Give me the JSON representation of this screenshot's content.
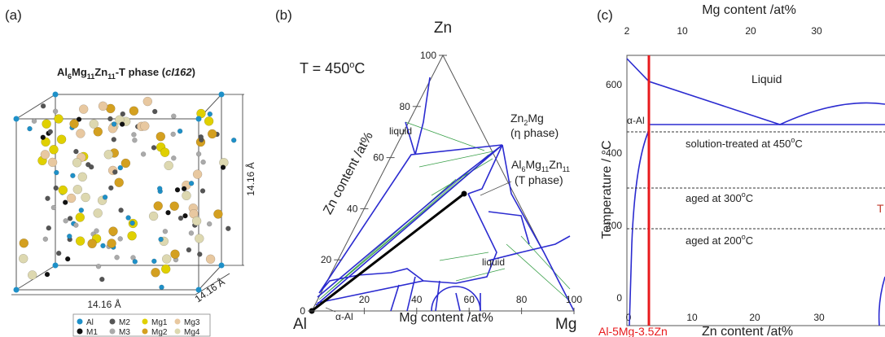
{
  "panel_a": {
    "label": "(a)",
    "title": [
      "Al",
      "6",
      "Mg",
      "11",
      "Zn",
      "11",
      "-T phase (",
      "cI162",
      ")"
    ],
    "dimensions": [
      "14.16 Å",
      "14.16 Å",
      "14.16 Å"
    ],
    "legend": [
      "Al",
      "M2",
      "Mg1",
      "Mg3",
      "M1",
      "M3",
      "Mg2",
      "Mg4"
    ]
  },
  "panel_b": {
    "label": "(b)",
    "apex": "Zn",
    "temperature": [
      "T = 450",
      "o",
      "C"
    ],
    "zn_axis_label": "Zn content /at%",
    "zn_ticks": [
      100,
      80,
      60,
      40,
      20,
      0
    ],
    "mg_axis_label": "Mg content /at%",
    "mg_ticks": [
      20,
      40,
      60,
      80,
      100
    ],
    "corners": [
      "Al",
      "Mg"
    ],
    "liquid_labels": [
      "liquid",
      "liquid"
    ],
    "eta_phase": [
      "Zn",
      "2",
      "Mg",
      "(η phase)"
    ],
    "t_phase": [
      "Al",
      "6",
      "Mg",
      "11",
      "Zn",
      "11",
      "(T phase)"
    ],
    "alpha": "α-Al"
  },
  "panel_c": {
    "label": "(c)",
    "top_axis_label": "Mg content /at%",
    "top_ticks": [
      2,
      10,
      20,
      30
    ],
    "y_axis_label": "Temperature / °C",
    "y_ticks": [
      600,
      400,
      200,
      0
    ],
    "x_axis_label": "Zn content /at%",
    "x_ticks": [
      0,
      10,
      20,
      30
    ],
    "liquid": "Liquid",
    "alpha": "α-Al",
    "treatments": [
      [
        "solution-treated at 450",
        "o",
        "C"
      ],
      [
        "aged at 300",
        "o",
        "C"
      ],
      [
        "aged at 200",
        "o",
        "C"
      ]
    ],
    "t_cut": "T",
    "alloy": "Al-5Mg-3.5Zn"
  }
}
